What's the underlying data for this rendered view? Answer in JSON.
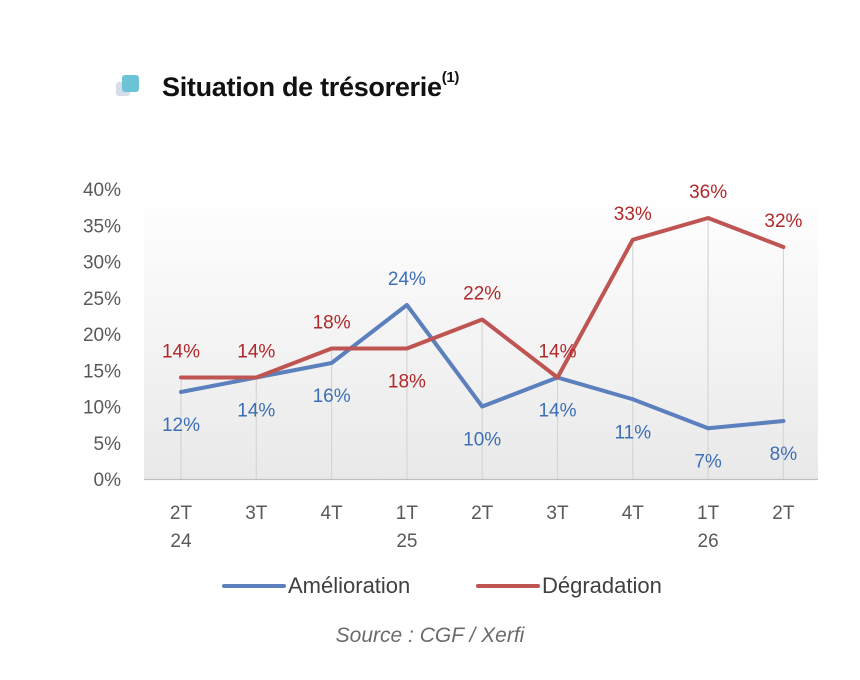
{
  "header": {
    "title": "Situation de trésorerie",
    "title_sup": "(1)",
    "bullet_icon": "square-bullet-icon"
  },
  "source": "Source : CGF / Xerfi",
  "chart_data": {
    "type": "line",
    "categories": [
      [
        "2T",
        "24"
      ],
      [
        "3T",
        ""
      ],
      [
        "4T",
        ""
      ],
      [
        "1T",
        "25"
      ],
      [
        "2T",
        ""
      ],
      [
        "3T",
        ""
      ],
      [
        "4T",
        ""
      ],
      [
        "1T",
        "26"
      ],
      [
        "2T",
        ""
      ]
    ],
    "ylim": [
      0,
      40
    ],
    "yticks": [
      0,
      5,
      10,
      15,
      20,
      25,
      30,
      35,
      40
    ],
    "ytick_labels": [
      "0%",
      "5%",
      "10%",
      "15%",
      "20%",
      "25%",
      "30%",
      "35%",
      "40%"
    ],
    "grid": "vertical",
    "legend_position": "bottom",
    "series": [
      {
        "name": "Amélioration",
        "color": "#5b80bd",
        "label_color": "#3d6fb5",
        "values": [
          12,
          14,
          16,
          24,
          10,
          14,
          11,
          7,
          8
        ],
        "labels": [
          "12%",
          "14%",
          "16%",
          "24%",
          "10%",
          "14%",
          "11%",
          "7%",
          "8%"
        ],
        "label_side": [
          "below",
          "below",
          "below",
          "above",
          "below",
          "below",
          "below",
          "below",
          "below"
        ]
      },
      {
        "name": "Dégradation",
        "color": "#bf5553",
        "label_color": "#b0282a",
        "values": [
          14,
          14,
          18,
          18,
          22,
          14,
          33,
          36,
          32
        ],
        "labels": [
          "14%",
          "14%",
          "18%",
          "18%",
          "22%",
          "14%",
          "33%",
          "36%",
          "32%"
        ],
        "label_side": [
          "above",
          "above",
          "above",
          "below",
          "above",
          "above",
          "above",
          "above",
          "above"
        ]
      }
    ]
  }
}
